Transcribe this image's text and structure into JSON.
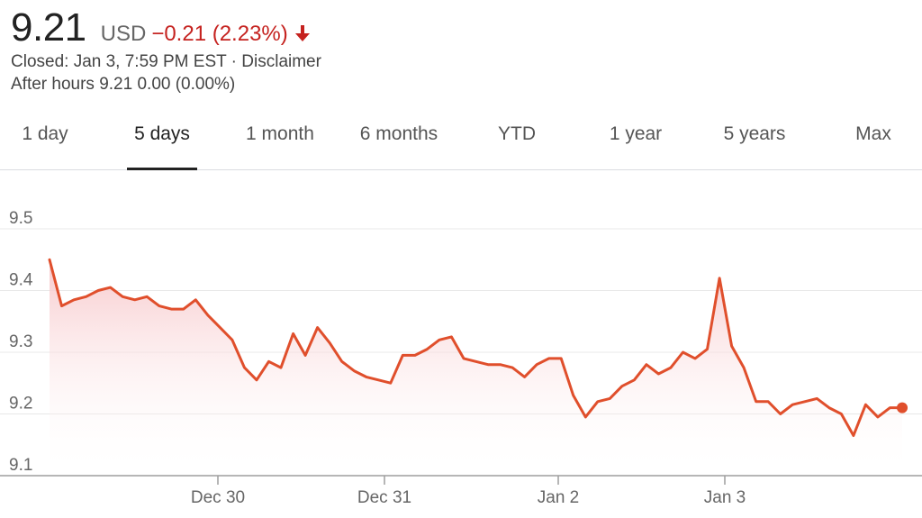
{
  "quote": {
    "price": "9.21",
    "currency": "USD",
    "change": "−0.21 (2.23%)",
    "closed_text": "Closed: Jan 3, 7:59 PM EST · ",
    "disclaimer": "Disclaimer",
    "after_hours": "After hours 9.21 0.00 (0.00%)",
    "trend": "down",
    "change_color": "#c5221f"
  },
  "tabs": [
    {
      "label": "1 day"
    },
    {
      "label": "5 days",
      "active": true
    },
    {
      "label": "1 month"
    },
    {
      "label": "6 months"
    },
    {
      "label": "YTD"
    },
    {
      "label": "1 year"
    },
    {
      "label": "5 years"
    },
    {
      "label": "Max"
    }
  ],
  "chart_data": {
    "type": "area",
    "title": "",
    "xlabel": "",
    "ylabel": "",
    "ylim": [
      9.1,
      9.5
    ],
    "yticks": [
      "9.5",
      "9.4",
      "9.3",
      "9.2",
      "9.1"
    ],
    "xtick_labels": [
      "Dec 30",
      "Dec 31",
      "Jan 2",
      "Jan 3"
    ],
    "grid": true,
    "line_color": "#e04f2c",
    "fill_color": "#f8d4d4",
    "series": [
      {
        "values": [
          9.45,
          9.375,
          9.385,
          9.39,
          9.4,
          9.405,
          9.39,
          9.385,
          9.39,
          9.375,
          9.37,
          9.37,
          9.385,
          9.36,
          9.34,
          9.32,
          9.275,
          9.255,
          9.285,
          9.275,
          9.33,
          9.295,
          9.34,
          9.315,
          9.285,
          9.27,
          9.26,
          9.255,
          9.25,
          9.295,
          9.295,
          9.305,
          9.32,
          9.325,
          9.29,
          9.285,
          9.28,
          9.28,
          9.275,
          9.26,
          9.28,
          9.29,
          9.29,
          9.23,
          9.195,
          9.22,
          9.225,
          9.245,
          9.255,
          9.28,
          9.265,
          9.275,
          9.3,
          9.29,
          9.305,
          9.42,
          9.31,
          9.275,
          9.22,
          9.22,
          9.2,
          9.215,
          9.22,
          9.225,
          9.21,
          9.2,
          9.165,
          9.215,
          9.195,
          9.21,
          9.21
        ]
      }
    ]
  }
}
